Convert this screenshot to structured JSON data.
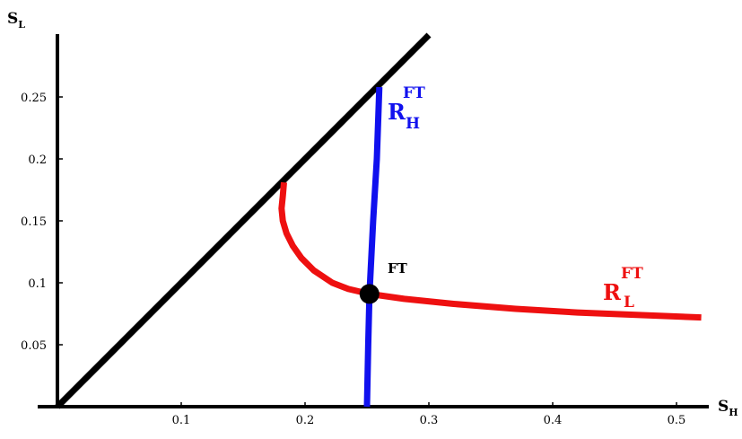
{
  "chart_data": {
    "type": "line",
    "title": "",
    "xlabel": {
      "main": "S",
      "sub": "H"
    },
    "ylabel": {
      "main": "S",
      "sub": "L"
    },
    "xlim": [
      0,
      0.52
    ],
    "ylim": [
      0,
      0.3
    ],
    "x_ticks": [
      {
        "value": 0.1,
        "label": "0.1"
      },
      {
        "value": 0.2,
        "label": "0.2"
      },
      {
        "value": 0.3,
        "label": "0.3"
      },
      {
        "value": 0.4,
        "label": "0.4"
      },
      {
        "value": 0.5,
        "label": "0.5"
      }
    ],
    "y_ticks": [
      {
        "value": 0.05,
        "label": "0.05"
      },
      {
        "value": 0.1,
        "label": "0.1"
      },
      {
        "value": 0.15,
        "label": "0.15"
      },
      {
        "value": 0.2,
        "label": "0.2"
      },
      {
        "value": 0.25,
        "label": "0.25"
      }
    ],
    "grid": false,
    "series": [
      {
        "id": "diagonal",
        "color": "#000000",
        "points": [
          [
            0,
            0
          ],
          [
            0.3,
            0.3
          ]
        ]
      },
      {
        "id": "RH",
        "color": "#1010ee",
        "label": {
          "main": "R",
          "sub": "H",
          "sup": "FT"
        },
        "points": [
          [
            0.25,
            0.0
          ],
          [
            0.251,
            0.05
          ],
          [
            0.252,
            0.091
          ],
          [
            0.255,
            0.15
          ],
          [
            0.258,
            0.2
          ],
          [
            0.26,
            0.258
          ]
        ]
      },
      {
        "id": "RL",
        "color": "#ee1010",
        "label": {
          "main": "R",
          "sub": "L",
          "sup": "FT"
        },
        "points": [
          [
            0.183,
            0.181
          ],
          [
            0.182,
            0.17
          ],
          [
            0.181,
            0.16
          ],
          [
            0.182,
            0.15
          ],
          [
            0.185,
            0.14
          ],
          [
            0.19,
            0.13
          ],
          [
            0.197,
            0.12
          ],
          [
            0.207,
            0.11
          ],
          [
            0.222,
            0.1
          ],
          [
            0.235,
            0.095
          ],
          [
            0.252,
            0.091
          ],
          [
            0.28,
            0.087
          ],
          [
            0.32,
            0.083
          ],
          [
            0.37,
            0.079
          ],
          [
            0.42,
            0.076
          ],
          [
            0.47,
            0.074
          ],
          [
            0.52,
            0.072
          ]
        ]
      }
    ],
    "points": [
      {
        "label": "FT",
        "x": 0.252,
        "y": 0.091,
        "color": "#000000"
      }
    ]
  }
}
